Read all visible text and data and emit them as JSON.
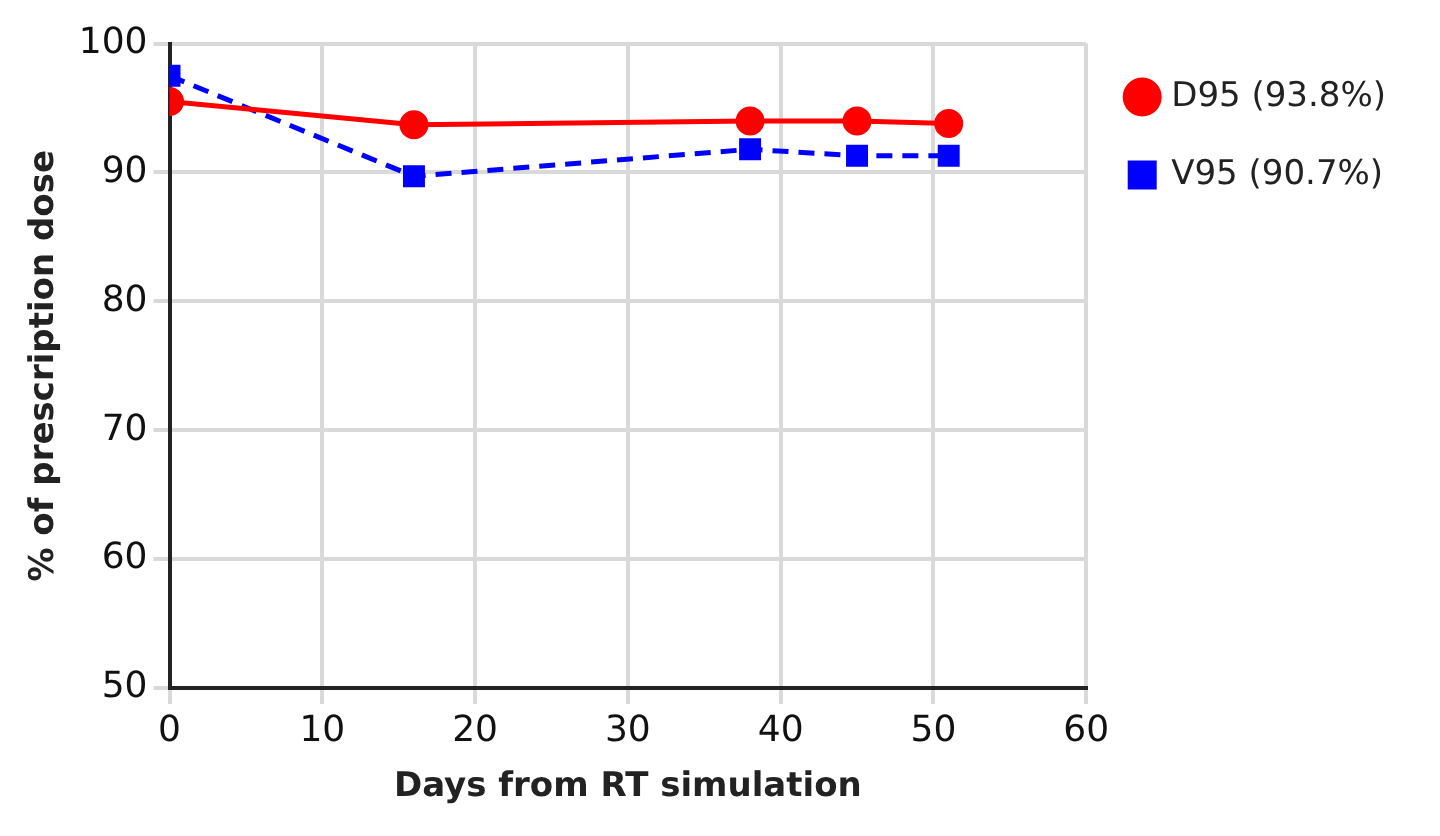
{
  "chart_data": {
    "type": "line",
    "xlabel": "Days from RT simulation",
    "ylabel": "% of prescription dose",
    "x": [
      0,
      16,
      38,
      45,
      51
    ],
    "series": [
      {
        "name": "D95 (93.8%)",
        "color": "#ff0000",
        "values": [
          95.5,
          93.7,
          94.0,
          94.0,
          93.8
        ],
        "marker": "circle",
        "line_style": "solid"
      },
      {
        "name": "V95 (90.7%)",
        "color": "#0000ff",
        "values": [
          97.5,
          89.7,
          91.8,
          91.3,
          91.3
        ],
        "marker": "square",
        "line_style": "dashed"
      }
    ],
    "xlim": [
      0,
      60
    ],
    "xticks": [
      0,
      10,
      20,
      30,
      40,
      50,
      60
    ],
    "ylim": [
      50,
      100
    ],
    "yticks": [
      50,
      60,
      70,
      80,
      90,
      100
    ],
    "grid": true,
    "legend": "right"
  }
}
